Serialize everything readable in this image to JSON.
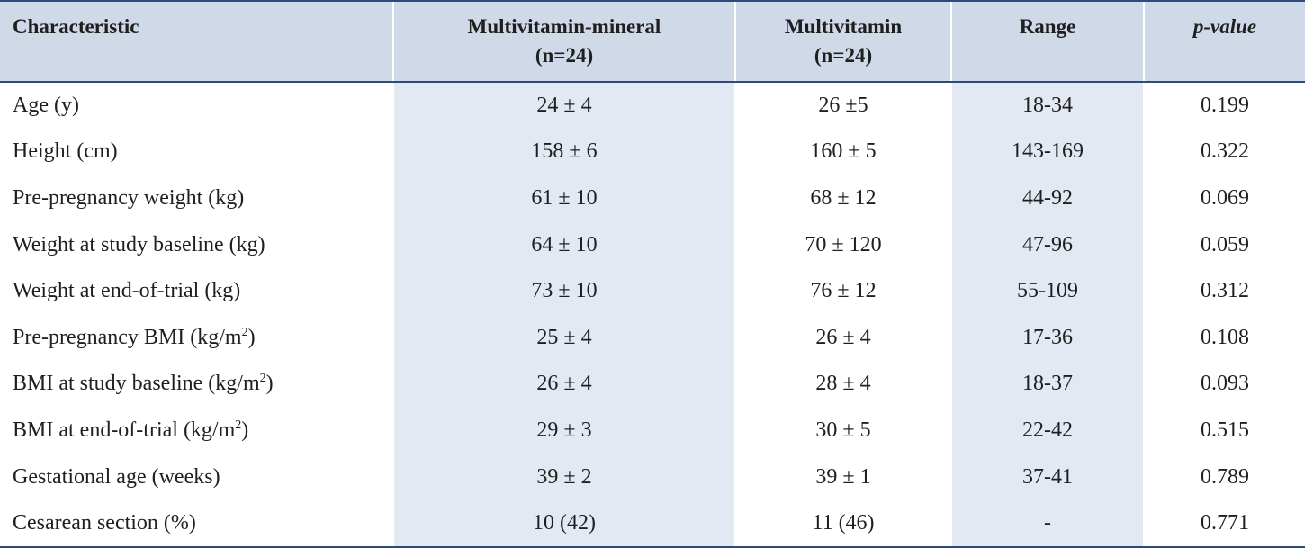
{
  "table": {
    "headers": [
      {
        "line1": "Characteristic",
        "line2": ""
      },
      {
        "line1": "Multivitamin-mineral",
        "line2": "(n=24)"
      },
      {
        "line1": "Multivitamin",
        "line2": "(n=24)"
      },
      {
        "line1": "Range",
        "line2": ""
      },
      {
        "line1": "p-value",
        "line2": ""
      }
    ],
    "rows": [
      {
        "characteristic": "Age (y)",
        "sup": "",
        "suffix": "",
        "mvm": "24 ± 4",
        "mv": "26 ±5",
        "range": "18-34",
        "p": "0.199"
      },
      {
        "characteristic": "Height (cm)",
        "sup": "",
        "suffix": "",
        "mvm": "158 ± 6",
        "mv": "160 ± 5",
        "range": "143-169",
        "p": "0.322"
      },
      {
        "characteristic": "Pre-pregnancy weight (kg)",
        "sup": "",
        "suffix": "",
        "mvm": "61 ± 10",
        "mv": "68 ± 12",
        "range": "44-92",
        "p": "0.069"
      },
      {
        "characteristic": "Weight at study baseline (kg)",
        "sup": "",
        "suffix": "",
        "mvm": "64 ± 10",
        "mv": "70 ± 120",
        "range": "47-96",
        "p": "0.059"
      },
      {
        "characteristic": "Weight at end-of-trial (kg)",
        "sup": "",
        "suffix": "",
        "mvm": "73 ± 10",
        "mv": "76 ± 12",
        "range": "55-109",
        "p": "0.312"
      },
      {
        "characteristic": "Pre-pregnancy BMI (kg/m",
        "sup": "2",
        "suffix": ")",
        "mvm": "25 ± 4",
        "mv": "26 ± 4",
        "range": "17-36",
        "p": "0.108"
      },
      {
        "characteristic": "BMI at study baseline (kg/m",
        "sup": "2",
        "suffix": ")",
        "mvm": "26 ± 4",
        "mv": "28 ± 4",
        "range": "18-37",
        "p": "0.093"
      },
      {
        "characteristic": "BMI at end-of-trial (kg/m",
        "sup": "2",
        "suffix": ")",
        "mvm": "29 ± 3",
        "mv": "30 ± 5",
        "range": "22-42",
        "p": "0.515"
      },
      {
        "characteristic": "Gestational age (weeks)",
        "sup": "",
        "suffix": "",
        "mvm": "39 ± 2",
        "mv": "39 ± 1",
        "range": "37-41",
        "p": "0.789"
      },
      {
        "characteristic": "Cesarean section (%)",
        "sup": "",
        "suffix": "",
        "mvm": "10 (42)",
        "mv": "11 (46)",
        "range": "-",
        "p": "0.771"
      }
    ]
  },
  "colors": {
    "header_bg": "#cfd9e8",
    "shade_bg": "#e3e9f3",
    "rule": "#2e4a7a"
  }
}
